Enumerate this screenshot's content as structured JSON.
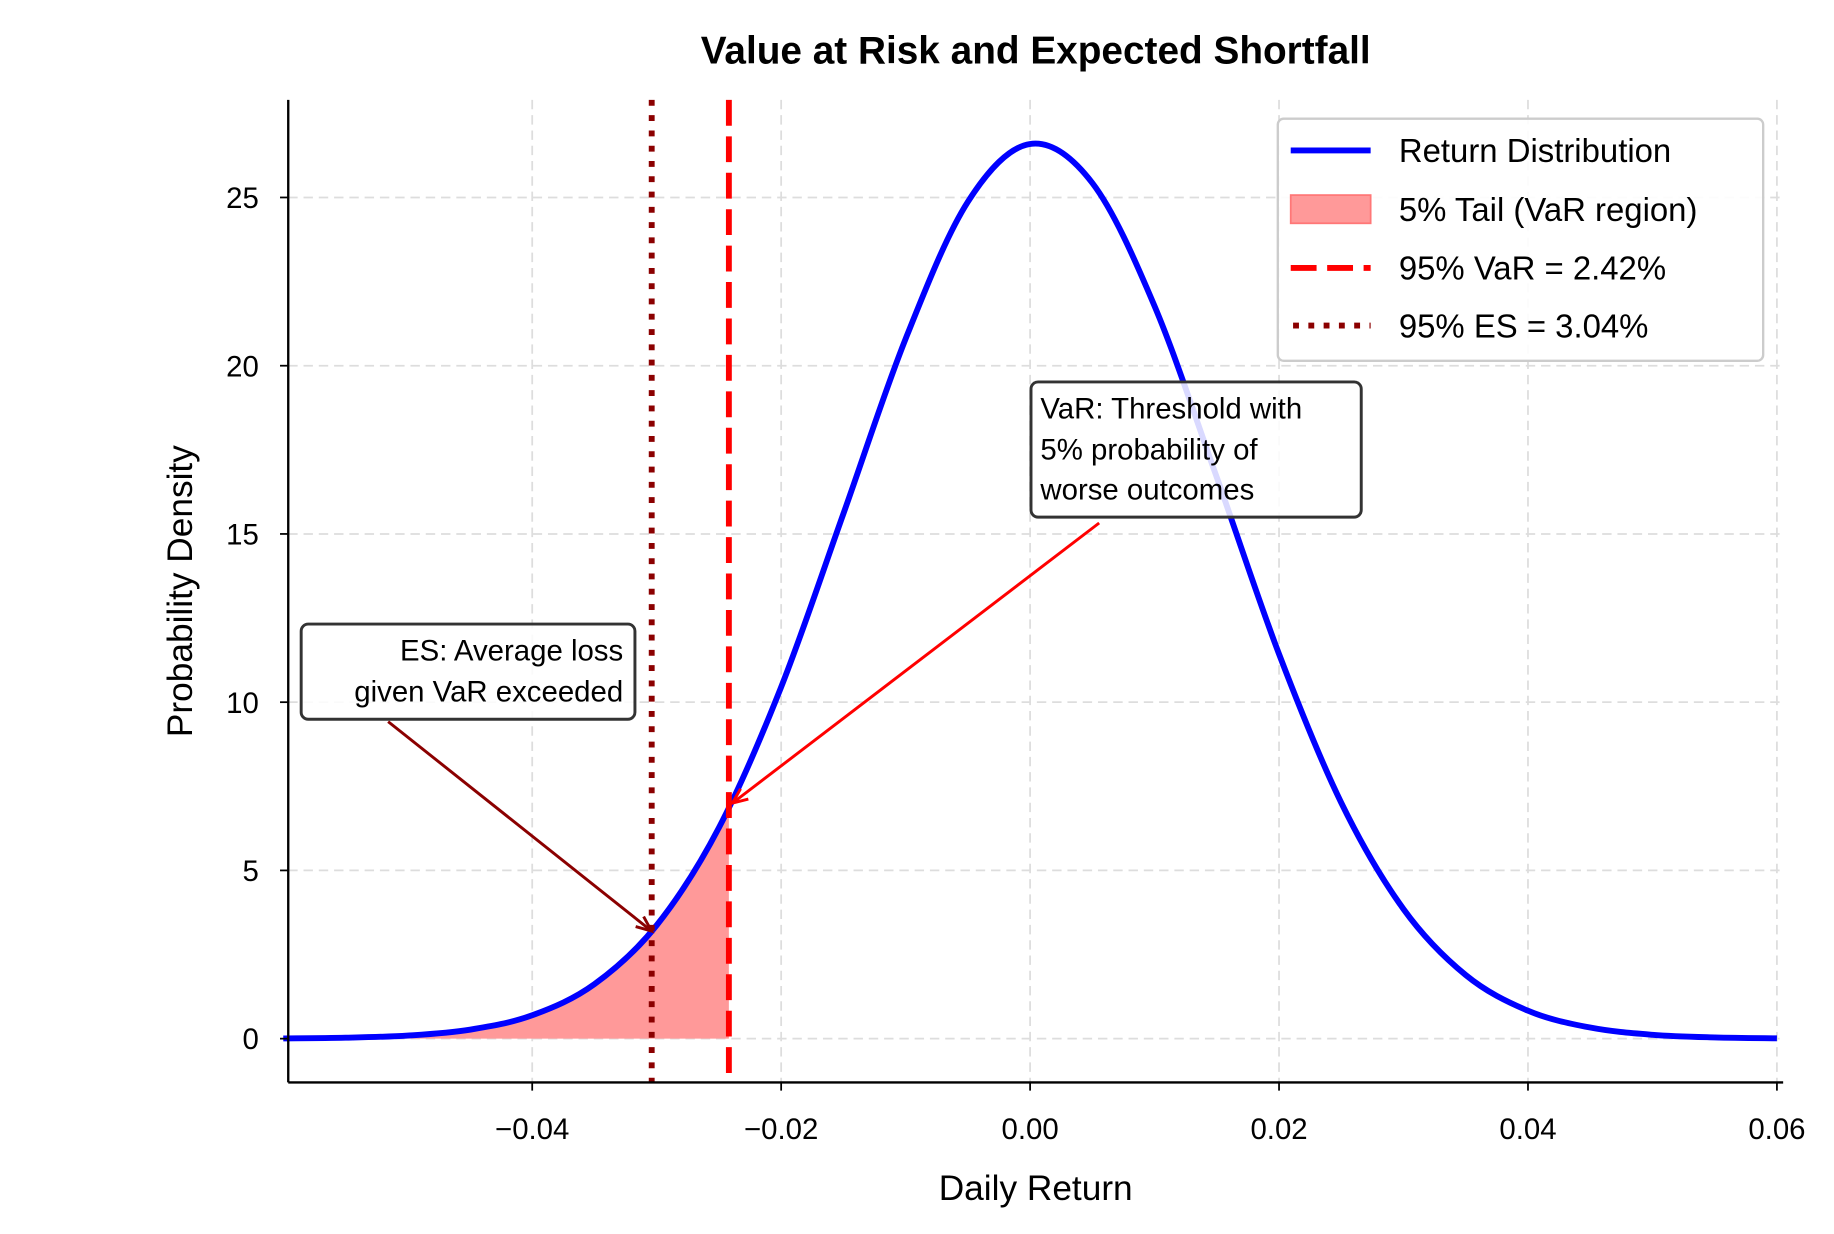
{
  "chart_data": {
    "type": "line",
    "title": "Value at Risk and Expected Shortfall",
    "xlabel": "Daily Return",
    "ylabel": "Probability Density",
    "xlim": [
      -0.0596,
      0.0605
    ],
    "ylim": [
      -1.3,
      27.9
    ],
    "xticks": [
      -0.04,
      -0.02,
      0.0,
      0.02,
      0.04,
      0.06
    ],
    "xtick_labels": [
      "−0.04",
      "−0.02",
      "0.00",
      "0.02",
      "0.04",
      "0.06"
    ],
    "yticks": [
      0,
      5,
      10,
      15,
      20,
      25
    ],
    "ytick_labels": [
      "0",
      "5",
      "10",
      "15",
      "20",
      "25"
    ],
    "grid": true,
    "legend_placement": "top-right",
    "series": [
      {
        "name": "Return Distribution",
        "color": "#0000ff",
        "x": [
          -0.06,
          -0.055,
          -0.05,
          -0.045,
          -0.04,
          -0.035,
          -0.03,
          -0.025,
          -0.02,
          -0.015,
          -0.01,
          -0.005,
          0.0,
          0.005,
          0.01,
          0.015,
          0.02,
          0.025,
          0.03,
          0.035,
          0.04,
          0.045,
          0.05,
          0.055,
          0.06
        ],
        "y": [
          0.008,
          0.028,
          0.092,
          0.267,
          0.695,
          1.62,
          3.37,
          6.27,
          10.45,
          15.6,
          20.8,
          24.87,
          26.59,
          25.43,
          21.77,
          16.68,
          11.43,
          7.01,
          3.85,
          1.89,
          0.83,
          0.33,
          0.115,
          0.036,
          0.01
        ]
      }
    ],
    "tail_fill": {
      "name": "5% Tail (VaR region)",
      "color": "#ff9999",
      "x": [
        -0.06,
        -0.055,
        -0.05,
        -0.045,
        -0.04,
        -0.035,
        -0.03,
        -0.025,
        -0.0242
      ],
      "y": [
        0.008,
        0.028,
        0.092,
        0.267,
        0.695,
        1.62,
        3.37,
        6.27,
        6.85
      ]
    },
    "vlines": [
      {
        "name": "95% VaR = 2.42%",
        "x": -0.0242,
        "color": "#ff0000",
        "style": "dashed"
      },
      {
        "name": "95% ES = 3.04%",
        "x": -0.0304,
        "color": "#8b0000",
        "style": "dotted"
      }
    ],
    "annotations": [
      {
        "lines": [
          "VaR: Threshold with",
          "5% probability of",
          "worse outcomes"
        ],
        "target": [
          -0.0242,
          7.0
        ],
        "color": "#ff0000"
      },
      {
        "lines": [
          "ES: Average loss",
          "given VaR exceeded"
        ],
        "target": [
          -0.0304,
          3.2
        ],
        "color": "#8b0000"
      }
    ]
  }
}
